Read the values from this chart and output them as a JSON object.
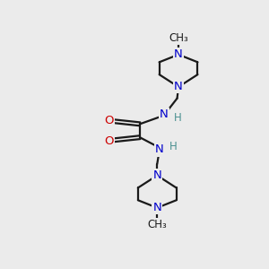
{
  "bg_color": "#ebebeb",
  "bond_color": "#1a1a1a",
  "N_color": "#0000cc",
  "O_color": "#cc0000",
  "H_color": "#4a9090",
  "line_width": 1.6,
  "fig_size": [
    3.0,
    3.0
  ],
  "dpi": 100,
  "xlim": [
    0,
    10
  ],
  "ylim": [
    0,
    14
  ]
}
